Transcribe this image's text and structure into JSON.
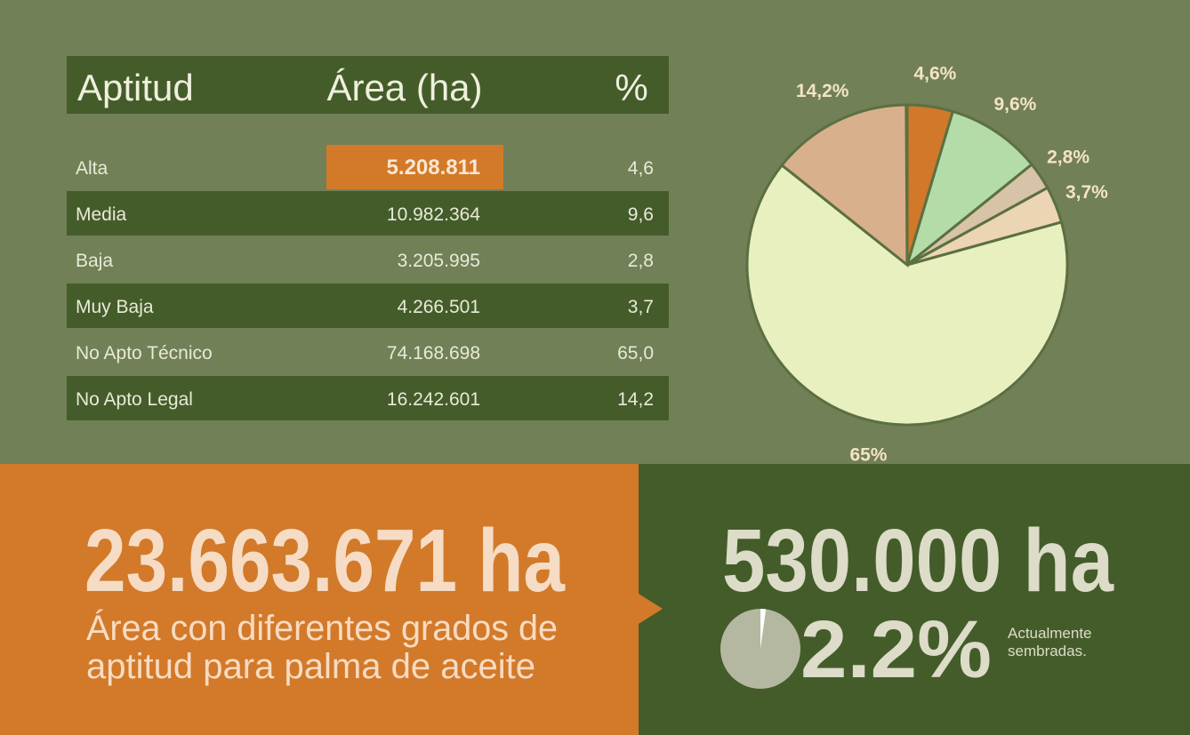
{
  "table": {
    "header": [
      "Aptitud",
      "Área (ha)",
      "%"
    ],
    "rows": [
      [
        "Alta",
        "5.208.811",
        "4,6"
      ],
      [
        "Media",
        "10.982.364",
        "9,6"
      ],
      [
        "Baja",
        "3.205.995",
        "2,8"
      ],
      [
        "Muy Baja",
        "4.266.501",
        "3,7"
      ],
      [
        "No Apto Técnico",
        "74.168.698",
        "65,0"
      ],
      [
        "No Apto Legal",
        "16.242.601",
        "14,2"
      ]
    ]
  },
  "chart_data": [
    {
      "type": "pie",
      "values": [
        4.6,
        9.6,
        2.8,
        3.7,
        65,
        14.2
      ],
      "value_labels": [
        "4,6%",
        "9,6%",
        "2,8%",
        "3,7%",
        "65%",
        "14,2%"
      ],
      "colors": [
        "#d2782a",
        "#b4dca8",
        "#d6c3a8",
        "#ecd5b4",
        "#e9f0bf",
        "#d9b08c"
      ]
    },
    {
      "type": "pie",
      "values": [
        2.2
      ],
      "value_labels": [
        "2.2%"
      ],
      "colors": [
        "#ffffff"
      ]
    }
  ],
  "highlights": {
    "left": {
      "value": "23.663.671 ha",
      "lines": [
        "Área con diferentes grados de",
        "aptitud para palma de aceite"
      ]
    },
    "right": {
      "value": "530.000 ha",
      "note": [
        "Actualmente",
        "sembradas."
      ]
    }
  }
}
